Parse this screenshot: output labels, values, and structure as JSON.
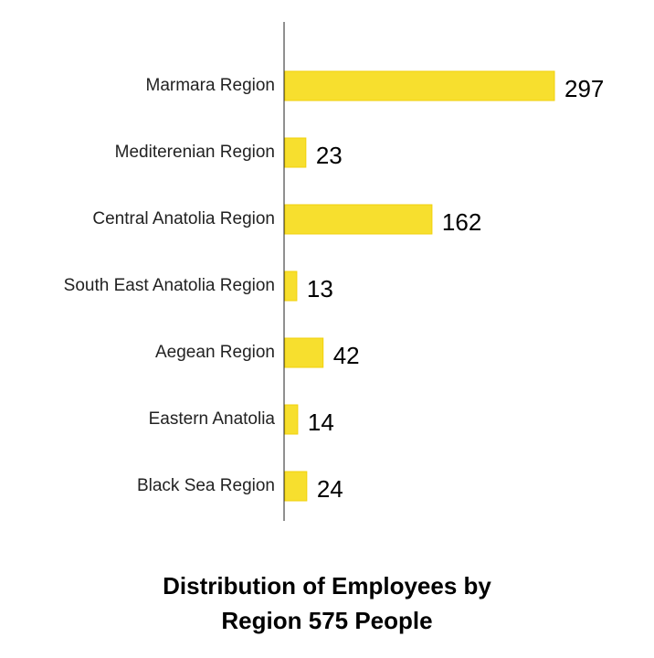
{
  "chart_data": {
    "type": "bar",
    "orientation": "horizontal",
    "title_lines": [
      "Distribution of Employees by",
      "Region 575 People"
    ],
    "xlabel": "",
    "ylabel": "",
    "categories": [
      "Marmara Region",
      "Mediterenian Region",
      "Central Anatolia Region",
      "South East Anatolia Region",
      "Aegean Region",
      "Eastern Anatolia",
      "Black Sea Region"
    ],
    "values": [
      297,
      23,
      162,
      13,
      42,
      14,
      24
    ],
    "xlim": [
      0,
      297
    ],
    "grid": false,
    "legend": "none",
    "bar_color": "#f7df2e",
    "bar_edge_color": "#f2d20c",
    "axis_color": "#222222"
  }
}
